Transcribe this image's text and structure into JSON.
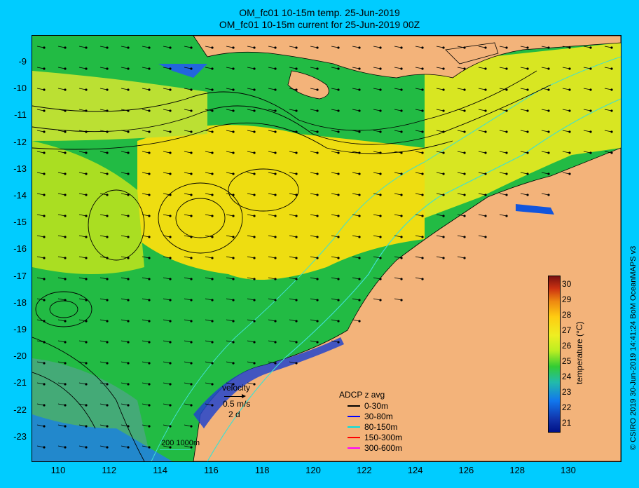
{
  "title_line1": "OM_fc01 10-15m temp. 25-Jun-2019",
  "title_line2": "OM_fc01 10-15m current for 25-Jun-2019 00Z",
  "y_ticks": [
    "-9",
    "-10",
    "-11",
    "-12",
    "-13",
    "-14",
    "-15",
    "-16",
    "-17",
    "-18",
    "-19",
    "-20",
    "-21",
    "-22",
    "-23"
  ],
  "x_ticks": [
    "110",
    "112",
    "114",
    "116",
    "118",
    "120",
    "122",
    "124",
    "126",
    "128",
    "130"
  ],
  "colorbar": {
    "label": "temperature (°C)",
    "ticks": [
      "30",
      "29",
      "28",
      "27",
      "26",
      "25",
      "24",
      "23",
      "22",
      "21"
    ],
    "range": [
      20.6,
      30.6
    ]
  },
  "velocity_legend": {
    "title": "velocity",
    "speed": "0.5 m/s",
    "time": "2 d"
  },
  "adcp_legend": {
    "title": "ADCP z avg",
    "items": [
      {
        "label": "0-30m",
        "color": "#000000"
      },
      {
        "label": "30-80m",
        "color": "#0000ff"
      },
      {
        "label": "80-150m",
        "color": "#00e0e0"
      },
      {
        "label": "150-300m",
        "color": "#ff0000"
      },
      {
        "label": "300-600m",
        "color": "#ff00ff"
      }
    ]
  },
  "isobath_legend": "200  1000m",
  "credit": "© CSIRO 2019   30-Jun-2019 14:41:24 BoM OceanMAPS v3",
  "colors": {
    "land": "#f3b37a",
    "background": "#00ccff",
    "isobath": "#40e0d0"
  }
}
